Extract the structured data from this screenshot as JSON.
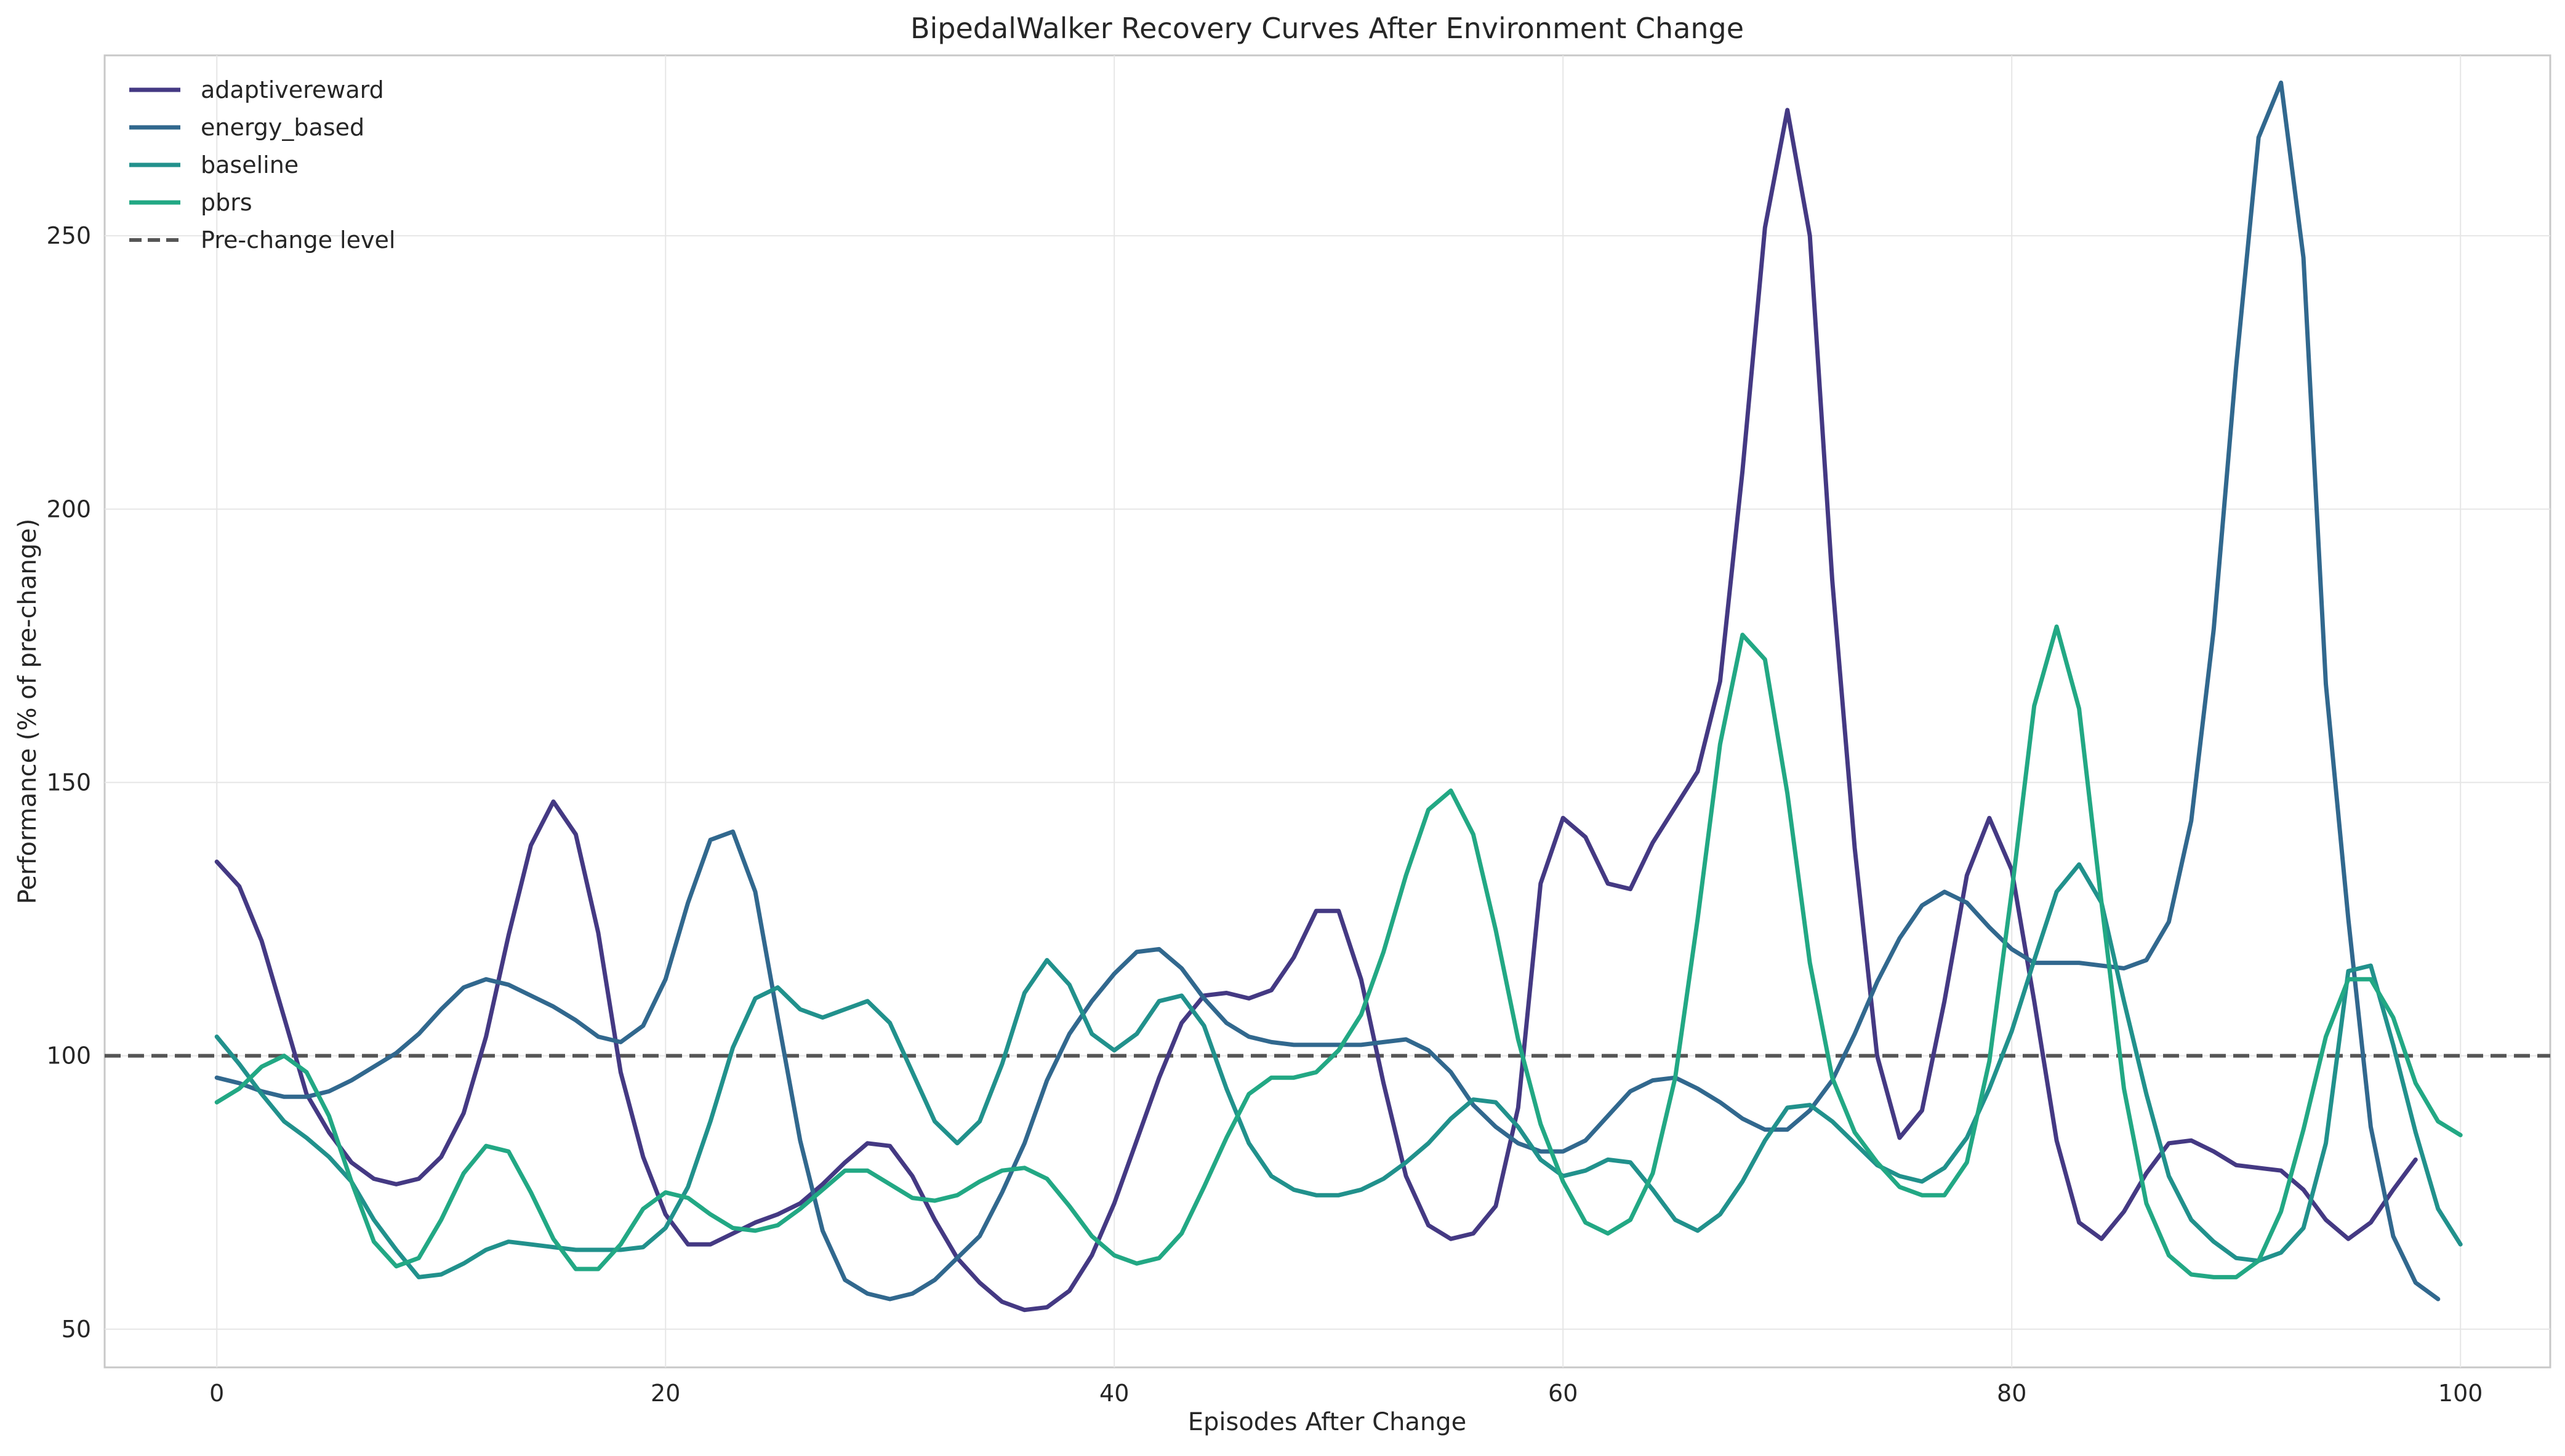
{
  "chart_data": {
    "type": "line",
    "title": "BipedalWalker Recovery Curves After Environment Change",
    "xlabel": "Episodes After Change",
    "ylabel": "Performance (% of pre-change)",
    "xlim": [
      -5,
      104
    ],
    "ylim": [
      43,
      283
    ],
    "xticks": [
      0,
      20,
      40,
      60,
      80,
      100
    ],
    "yticks": [
      50,
      100,
      150,
      200,
      250
    ],
    "grid": true,
    "legend_position": "top-left",
    "series": [
      {
        "name": "adaptivereward",
        "color": "#443983",
        "values": [
          135.5,
          131,
          121,
          107,
          93,
          86,
          80.5,
          77.5,
          76.5,
          77.5,
          81.5,
          89.5,
          103.5,
          122,
          138.5,
          146.5,
          140.5,
          122.5,
          97,
          81.5,
          71,
          65.5,
          65.5,
          67.5,
          69.5,
          71,
          73,
          76.5,
          80.5,
          84,
          83.5,
          78,
          70,
          63,
          58.5,
          55,
          53.5,
          54,
          57,
          63.5,
          73,
          84.5,
          96,
          106,
          111,
          111.5,
          110.5,
          112,
          118,
          126.5,
          126.5,
          114,
          95,
          78,
          69,
          66.5,
          67.5,
          72.5,
          90.5,
          131.5,
          143.5,
          140,
          131.5,
          130.5,
          139,
          145.5,
          152,
          168.5,
          207,
          251.5,
          273,
          250,
          187,
          138,
          100,
          85,
          90,
          110,
          133,
          143.5,
          134,
          110,
          84.5,
          69.5,
          66.5,
          71.5,
          78.5,
          84,
          84.5,
          82.5,
          80,
          79.5,
          79,
          75.5,
          70,
          66.5,
          69.5,
          75.5,
          81
        ]
      },
      {
        "name": "energy_based",
        "color": "#31688e",
        "values": [
          96,
          95,
          93.5,
          92.5,
          92.5,
          93.5,
          95.5,
          98,
          100.5,
          104,
          108.5,
          112.5,
          114,
          113,
          111,
          109,
          106.5,
          103.5,
          102.5,
          105.5,
          114,
          128,
          139.5,
          141,
          130,
          107,
          84.5,
          68,
          59,
          56.5,
          55.5,
          56.5,
          59,
          63,
          67,
          75,
          84,
          95.5,
          104,
          110,
          115,
          119,
          119.5,
          116,
          110.5,
          106,
          103.5,
          102.5,
          102,
          102,
          102,
          102,
          102.5,
          103,
          101,
          97,
          91,
          87,
          84,
          82.5,
          82.5,
          84.5,
          89,
          93.5,
          95.5,
          96,
          94,
          91.5,
          88.5,
          86.5,
          86.5,
          90,
          95.5,
          104,
          113.5,
          121.5,
          127.5,
          130,
          128,
          123.5,
          119.5,
          117,
          117,
          117,
          116.5,
          116,
          117.5,
          124.5,
          143,
          178,
          226,
          268,
          278,
          246,
          168,
          125,
          87,
          67,
          58.5,
          55.5
        ]
      },
      {
        "name": "baseline",
        "color": "#21918c",
        "values": [
          103.5,
          98.5,
          93,
          88,
          85,
          81.5,
          77,
          70,
          64.5,
          59.5,
          60,
          62,
          64.5,
          66,
          65.5,
          65,
          64.5,
          64.5,
          64.5,
          65,
          68.5,
          76,
          88,
          101.5,
          110.5,
          112.5,
          108.5,
          107,
          108.5,
          110,
          106,
          97,
          88,
          84,
          88,
          98.5,
          111.5,
          117.5,
          113,
          104,
          101,
          104,
          110,
          111,
          105.5,
          94,
          84,
          78,
          75.5,
          74.5,
          74.5,
          75.5,
          77.5,
          80.5,
          84,
          88.5,
          92,
          91.5,
          87,
          81,
          78,
          79,
          81,
          80.5,
          75.5,
          70,
          68,
          71,
          77,
          84.5,
          90.5,
          91,
          88,
          84,
          80,
          78,
          77,
          79.5,
          85,
          94,
          104.5,
          117.5,
          130,
          135,
          128,
          110,
          93,
          78,
          70,
          66,
          63,
          62.5,
          64,
          68.5,
          84,
          115.5,
          116.5,
          102,
          86,
          72,
          65.5
        ]
      },
      {
        "name": "pbrs",
        "color": "#22a884",
        "values": [
          91.5,
          94,
          98,
          100,
          97,
          89,
          77,
          66,
          61.5,
          63,
          70,
          78.5,
          83.5,
          82.5,
          75,
          66.5,
          61,
          61,
          65.5,
          72,
          75,
          74,
          71,
          68.5,
          68,
          69,
          72,
          75.5,
          79,
          79,
          76.5,
          74,
          73.5,
          74.5,
          77,
          79,
          79.5,
          77.5,
          72.5,
          67,
          63.5,
          62,
          63,
          67.5,
          76,
          85,
          93,
          96,
          96,
          97,
          101,
          107.5,
          119,
          133,
          145,
          148.5,
          140.5,
          123,
          103,
          87.5,
          77,
          69.5,
          67.5,
          70,
          78.5,
          96,
          125,
          157,
          177,
          172.5,
          148,
          117,
          96,
          86,
          80.5,
          76,
          74.5,
          74.5,
          80.5,
          99,
          130,
          164,
          178.5,
          163.5,
          128,
          94,
          73,
          63.5,
          60,
          59.5,
          59.5,
          62.5,
          71.5,
          86.5,
          103.5,
          114,
          114,
          107,
          95,
          88,
          85.5
        ]
      },
      {
        "name": "Pre-change level",
        "color": "#555555",
        "dashed": true,
        "values": [
          100,
          100
        ]
      }
    ]
  }
}
